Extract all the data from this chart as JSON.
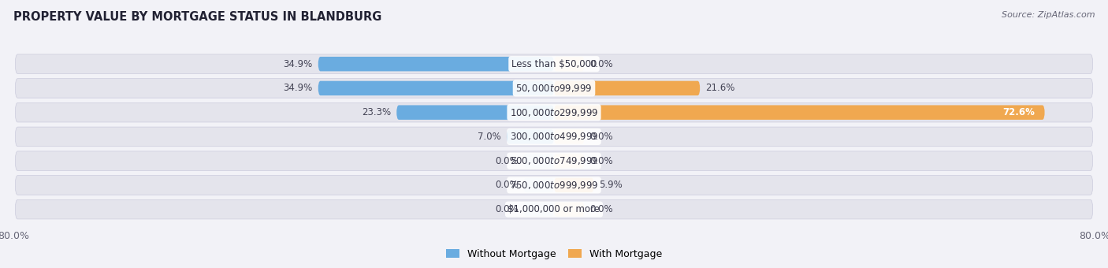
{
  "title": "PROPERTY VALUE BY MORTGAGE STATUS IN BLANDBURG",
  "source": "Source: ZipAtlas.com",
  "categories": [
    "Less than $50,000",
    "$50,000 to $99,999",
    "$100,000 to $299,999",
    "$300,000 to $499,999",
    "$500,000 to $749,999",
    "$750,000 to $999,999",
    "$1,000,000 or more"
  ],
  "without_mortgage": [
    34.9,
    34.9,
    23.3,
    7.0,
    0.0,
    0.0,
    0.0
  ],
  "with_mortgage": [
    0.0,
    21.6,
    72.6,
    0.0,
    0.0,
    5.9,
    0.0
  ],
  "color_without": "#6aace0",
  "color_without_faint": "#b8d5ee",
  "color_with": "#f0a850",
  "color_with_faint": "#f5d0a0",
  "bg_color": "#f2f2f7",
  "row_bg_color": "#e4e4ec",
  "xlim_left": -80.0,
  "xlim_right": 80.0,
  "min_bar_width": 4.5,
  "label_fontsize": 8.5,
  "cat_fontsize": 8.5,
  "title_fontsize": 10.5,
  "source_fontsize": 8
}
